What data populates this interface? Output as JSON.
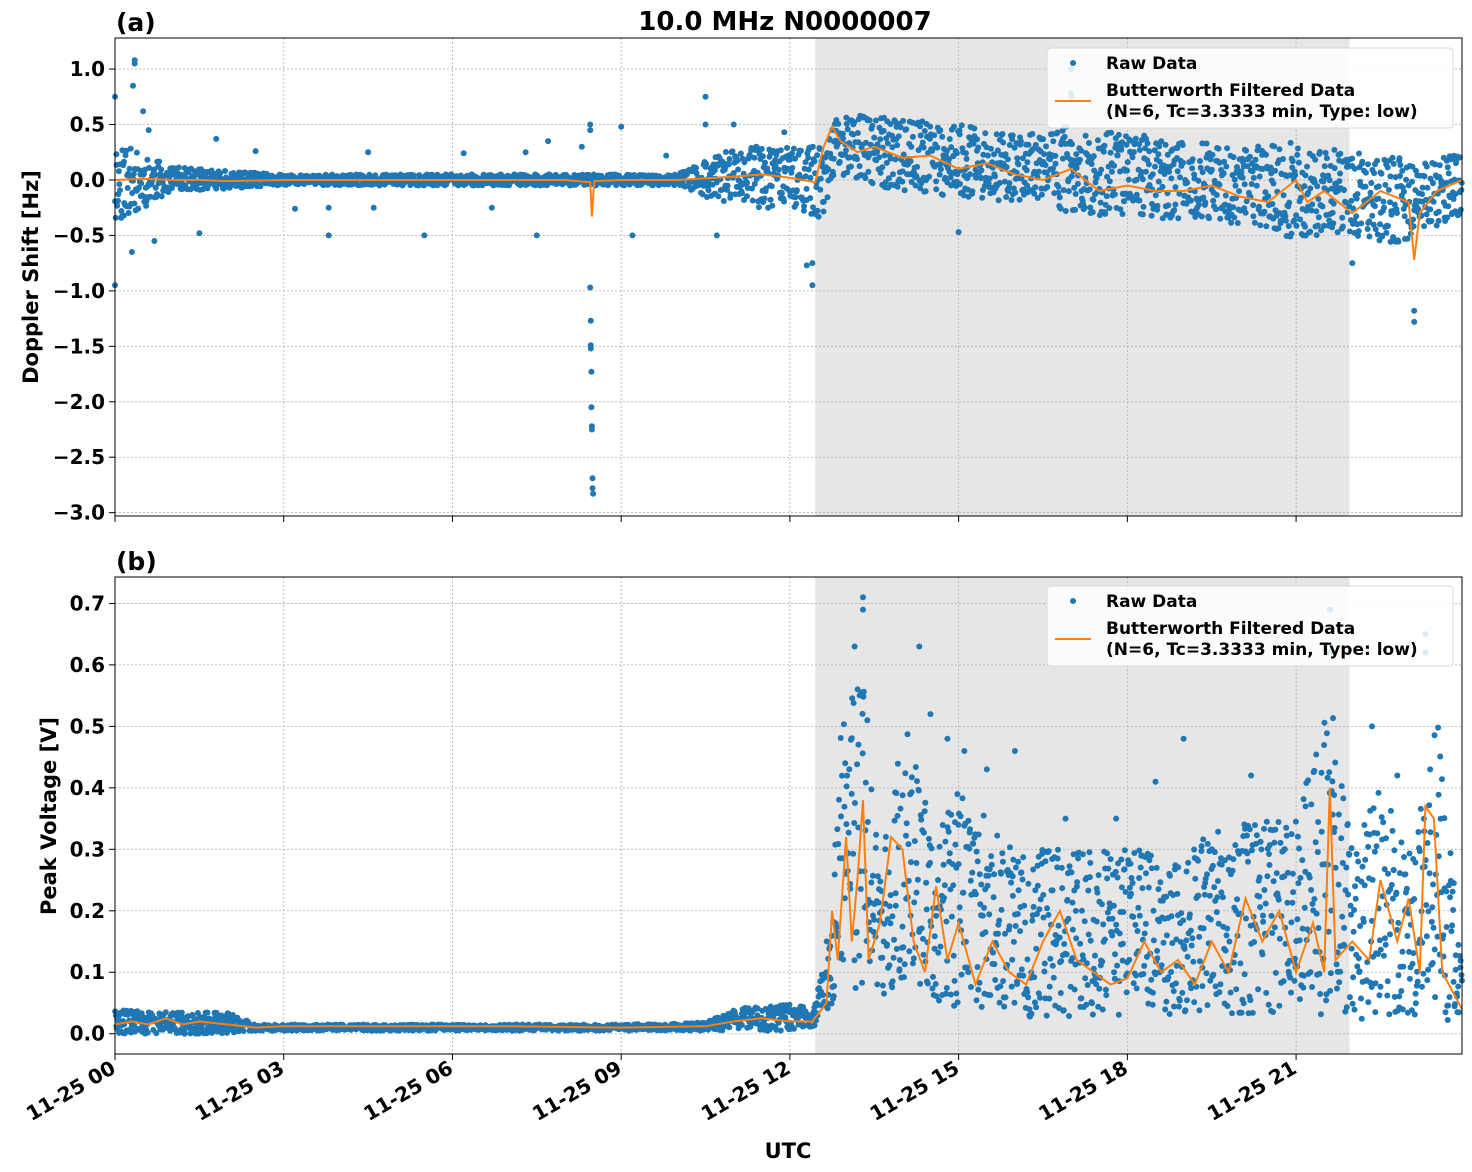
{
  "figure": {
    "title": "10.0 MHz N0000007",
    "xlabel": "UTC",
    "x_ticks": [
      "11-25 00",
      "11-25 03",
      "11-25 06",
      "11-25 09",
      "11-25 12",
      "11-25 15",
      "11-25 18",
      "11-25 21"
    ],
    "shaded_interval_hours": [
      12.45,
      21.95
    ],
    "colors": {
      "raw": "#1f77b4",
      "filtered": "#ff7f0e",
      "shade": "#e6e6e6",
      "grid": "#b0b0b0"
    }
  },
  "chart_data": [
    {
      "type": "scatter",
      "panel_label": "(a)",
      "ylabel": "Doppler Shift [Hz]",
      "ylim": [
        -3.03,
        1.28
      ],
      "xlim_hours": [
        0,
        23.95
      ],
      "y_ticks": [
        "1.0",
        "0.5",
        "0.0",
        "−0.5",
        "−1.0",
        "−1.5",
        "−2.0",
        "−2.5",
        "−3.0"
      ],
      "y_tick_values": [
        1.0,
        0.5,
        0.0,
        -0.5,
        -1.0,
        -1.5,
        -2.0,
        -2.5,
        -3.0
      ],
      "grid": true,
      "legend_position": "top-right",
      "legend": [
        "Raw Data",
        "Butterworth Filtered Data",
        "(N=6, Tc=3.3333 min, Type: low)"
      ],
      "series": [
        {
          "name": "Raw Data",
          "style": "points",
          "envelope_hours": [
            0,
            1,
            2,
            3,
            4,
            5,
            6,
            7,
            8,
            8.5,
            9,
            10,
            11,
            12,
            12.6,
            12.8,
            13,
            14,
            15,
            16,
            17,
            18,
            19,
            20,
            21,
            22,
            23,
            23.95
          ],
          "envelope_upper": [
            0.35,
            0.12,
            0.08,
            0.05,
            0.05,
            0.05,
            0.05,
            0.05,
            0.05,
            0.05,
            0.05,
            0.05,
            0.3,
            0.3,
            0.3,
            0.55,
            0.6,
            0.55,
            0.5,
            0.4,
            0.5,
            0.4,
            0.35,
            0.3,
            0.35,
            0.25,
            0.2,
            0.25
          ],
          "envelope_lower": [
            -0.4,
            -0.1,
            -0.08,
            -0.05,
            -0.05,
            -0.05,
            -0.05,
            -0.05,
            -0.05,
            -0.05,
            -0.05,
            -0.05,
            -0.25,
            -0.25,
            -0.35,
            0.1,
            0.0,
            -0.1,
            -0.15,
            -0.2,
            -0.3,
            -0.35,
            -0.35,
            -0.4,
            -0.55,
            -0.5,
            -0.6,
            -0.3
          ],
          "outliers": [
            [
              0.0,
              0.75
            ],
            [
              0.0,
              -0.95
            ],
            [
              0.35,
              1.08
            ],
            [
              0.35,
              1.05
            ],
            [
              0.32,
              0.85
            ],
            [
              0.5,
              0.62
            ],
            [
              0.6,
              0.45
            ],
            [
              0.3,
              -0.65
            ],
            [
              0.7,
              -0.55
            ],
            [
              1.5,
              -0.48
            ],
            [
              1.8,
              0.37
            ],
            [
              2.5,
              0.26
            ],
            [
              3.2,
              -0.26
            ],
            [
              3.8,
              -0.25
            ],
            [
              3.8,
              -0.5
            ],
            [
              4.5,
              0.25
            ],
            [
              4.6,
              -0.25
            ],
            [
              5.5,
              -0.5
            ],
            [
              6.2,
              0.24
            ],
            [
              6.7,
              -0.25
            ],
            [
              7.3,
              0.25
            ],
            [
              7.5,
              -0.5
            ],
            [
              7.7,
              0.35
            ],
            [
              8.3,
              0.3
            ],
            [
              8.45,
              0.5
            ],
            [
              8.45,
              0.45
            ],
            [
              8.45,
              -0.97
            ],
            [
              8.46,
              -1.27
            ],
            [
              8.46,
              -1.49
            ],
            [
              8.46,
              -1.52
            ],
            [
              8.47,
              -1.73
            ],
            [
              8.47,
              -2.05
            ],
            [
              8.48,
              -2.22
            ],
            [
              8.48,
              -2.25
            ],
            [
              8.49,
              -2.69
            ],
            [
              8.49,
              -2.78
            ],
            [
              8.5,
              -2.83
            ],
            [
              9.0,
              0.48
            ],
            [
              9.2,
              -0.5
            ],
            [
              9.8,
              0.22
            ],
            [
              10.5,
              0.75
            ],
            [
              10.5,
              0.5
            ],
            [
              10.7,
              -0.5
            ],
            [
              11.0,
              0.5
            ],
            [
              11.9,
              0.43
            ],
            [
              12.3,
              -0.77
            ],
            [
              12.4,
              -0.95
            ],
            [
              12.4,
              -0.75
            ],
            [
              15.0,
              -0.47
            ],
            [
              17.0,
              1.0
            ],
            [
              17.0,
              0.78
            ],
            [
              17.0,
              0.75
            ],
            [
              18.3,
              0.4
            ],
            [
              20.9,
              0.62
            ],
            [
              22.0,
              -0.75
            ],
            [
              23.1,
              -1.28
            ],
            [
              23.1,
              -1.18
            ]
          ]
        },
        {
          "name": "Butterworth Filtered Data",
          "style": "line",
          "x_hours": [
            0,
            0.5,
            1,
            1.5,
            2,
            3,
            4,
            5,
            6,
            7,
            8,
            8.45,
            8.48,
            8.52,
            9,
            10,
            11,
            11.5,
            12,
            12.45,
            12.6,
            12.75,
            12.9,
            13.2,
            13.5,
            14,
            14.5,
            15,
            15.5,
            16,
            16.5,
            17,
            17.5,
            18,
            18.5,
            19,
            19.5,
            20,
            20.5,
            21,
            21.2,
            21.5,
            22,
            22.5,
            23,
            23.1,
            23.2,
            23.5,
            23.95
          ],
          "y": [
            0.0,
            0.01,
            0.0,
            0.0,
            -0.01,
            0.0,
            0.0,
            0.0,
            0.0,
            0.0,
            0.0,
            -0.02,
            -0.33,
            -0.01,
            0.0,
            0.0,
            0.03,
            0.05,
            0.02,
            -0.02,
            0.3,
            0.48,
            0.35,
            0.25,
            0.3,
            0.2,
            0.22,
            0.1,
            0.15,
            0.05,
            0.0,
            0.1,
            -0.1,
            -0.05,
            -0.1,
            -0.1,
            -0.05,
            -0.15,
            -0.2,
            0.0,
            -0.2,
            -0.1,
            -0.3,
            -0.1,
            -0.2,
            -0.72,
            -0.3,
            -0.1,
            0.0
          ]
        }
      ]
    },
    {
      "type": "scatter",
      "panel_label": "(b)",
      "ylabel": "Peak Voltage [V]",
      "ylim": [
        -0.033,
        0.743
      ],
      "xlim_hours": [
        0,
        23.95
      ],
      "y_ticks": [
        "0.7",
        "0.6",
        "0.5",
        "0.4",
        "0.3",
        "0.2",
        "0.1",
        "0.0"
      ],
      "y_tick_values": [
        0.7,
        0.6,
        0.5,
        0.4,
        0.3,
        0.2,
        0.1,
        0.0
      ],
      "grid": true,
      "legend_position": "top-right",
      "legend": [
        "Raw Data",
        "Butterworth Filtered Data",
        "(N=6, Tc=3.3333 min, Type: low)"
      ],
      "series": [
        {
          "name": "Raw Data",
          "style": "points",
          "envelope_hours": [
            0,
            1,
            2,
            2.5,
            3,
            6,
            9,
            10.5,
            11,
            12,
            12.4,
            12.75,
            12.9,
            13.3,
            13.6,
            14,
            14.5,
            15,
            16,
            17,
            18,
            19,
            20,
            21,
            21.6,
            22,
            22.5,
            23,
            23.5,
            23.95
          ],
          "envelope_upper": [
            0.04,
            0.035,
            0.035,
            0.015,
            0.015,
            0.015,
            0.015,
            0.018,
            0.04,
            0.05,
            0.04,
            0.2,
            0.5,
            0.6,
            0.25,
            0.55,
            0.35,
            0.4,
            0.3,
            0.3,
            0.3,
            0.3,
            0.35,
            0.35,
            0.55,
            0.3,
            0.4,
            0.3,
            0.55,
            0.1
          ],
          "envelope_lower": [
            0.0,
            0.0,
            0.0,
            0.005,
            0.005,
            0.005,
            0.005,
            0.005,
            0.005,
            0.005,
            0.005,
            0.05,
            0.08,
            0.05,
            0.06,
            0.08,
            0.05,
            0.03,
            0.03,
            0.02,
            0.03,
            0.03,
            0.03,
            0.03,
            0.03,
            0.02,
            0.03,
            0.03,
            0.03,
            0.01
          ],
          "outliers": [
            [
              13.3,
              0.71
            ],
            [
              13.3,
              0.69
            ],
            [
              13.15,
              0.63
            ],
            [
              14.3,
              0.63
            ],
            [
              14.5,
              0.52
            ],
            [
              14.8,
              0.48
            ],
            [
              15.1,
              0.46
            ],
            [
              15.5,
              0.43
            ],
            [
              16.0,
              0.46
            ],
            [
              16.9,
              0.35
            ],
            [
              17.8,
              0.35
            ],
            [
              18.5,
              0.41
            ],
            [
              19.0,
              0.48
            ],
            [
              19.5,
              0.3
            ],
            [
              20.2,
              0.42
            ],
            [
              20.8,
              0.3
            ],
            [
              21.6,
              0.69
            ],
            [
              21.6,
              0.62
            ],
            [
              22.35,
              0.5
            ],
            [
              22.8,
              0.42
            ],
            [
              23.3,
              0.65
            ],
            [
              23.3,
              0.62
            ]
          ]
        },
        {
          "name": "Butterworth Filtered Data",
          "style": "line",
          "x_hours": [
            0,
            0.3,
            0.6,
            0.9,
            1.2,
            1.5,
            2,
            2.5,
            3,
            5,
            7,
            9,
            10.5,
            11,
            11.5,
            12,
            12.4,
            12.65,
            12.75,
            12.85,
            13.0,
            13.1,
            13.2,
            13.3,
            13.4,
            13.6,
            13.8,
            14.0,
            14.2,
            14.4,
            14.6,
            14.8,
            15.0,
            15.3,
            15.6,
            15.9,
            16.2,
            16.5,
            16.8,
            17.1,
            17.4,
            17.7,
            18.0,
            18.3,
            18.6,
            18.9,
            19.2,
            19.5,
            19.8,
            20.1,
            20.4,
            20.7,
            21.0,
            21.3,
            21.5,
            21.6,
            21.7,
            22.0,
            22.3,
            22.5,
            22.8,
            23.0,
            23.2,
            23.3,
            23.45,
            23.6,
            23.95
          ],
          "y": [
            0.015,
            0.02,
            0.015,
            0.025,
            0.015,
            0.02,
            0.015,
            0.01,
            0.012,
            0.012,
            0.012,
            0.01,
            0.012,
            0.02,
            0.025,
            0.02,
            0.02,
            0.05,
            0.2,
            0.12,
            0.32,
            0.15,
            0.25,
            0.38,
            0.12,
            0.18,
            0.32,
            0.3,
            0.15,
            0.1,
            0.24,
            0.12,
            0.18,
            0.08,
            0.15,
            0.1,
            0.08,
            0.15,
            0.2,
            0.12,
            0.1,
            0.08,
            0.09,
            0.15,
            0.1,
            0.12,
            0.08,
            0.15,
            0.1,
            0.22,
            0.15,
            0.2,
            0.1,
            0.18,
            0.1,
            0.4,
            0.12,
            0.15,
            0.12,
            0.25,
            0.15,
            0.22,
            0.1,
            0.37,
            0.35,
            0.1,
            0.04
          ]
        }
      ]
    }
  ]
}
